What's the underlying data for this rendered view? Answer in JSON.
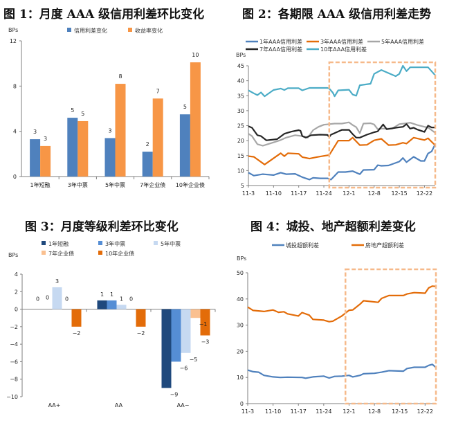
{
  "colors": {
    "blue": "#4F81BD",
    "orange": "#F79646",
    "navy": "#1F497D",
    "midblue": "#558ED5",
    "lightblue": "#C6D9F1",
    "peach": "#FAC090",
    "deeporange": "#E36C09",
    "teal": "#4BACC6",
    "gray": "#A6A6A6",
    "black": "#262626",
    "box": "#F6B98A"
  },
  "chart_data": [
    {
      "id": "fig1",
      "type": "bar",
      "title": "图 1：月度 AAA 级信用利差环比变化",
      "ylabel": "BPs",
      "ylim": [
        0,
        12
      ],
      "yticks": [
        0,
        4,
        8,
        12
      ],
      "categories": [
        "1年短融",
        "3年中票",
        "5年中票",
        "7年企业债",
        "10年企业债"
      ],
      "series": [
        {
          "name": "信用利差变化",
          "color": "#4F81BD",
          "values": [
            3.3,
            5.2,
            3.4,
            2.2,
            5.5
          ],
          "labels": [
            "3",
            "5",
            "3",
            "2",
            "5"
          ]
        },
        {
          "name": "收益率变化",
          "color": "#F79646",
          "values": [
            2.7,
            4.9,
            8.2,
            6.9,
            10.1
          ],
          "labels": [
            "3",
            "5",
            "8",
            "7",
            "10"
          ]
        }
      ],
      "legend": "top"
    },
    {
      "id": "fig2",
      "type": "line",
      "title": "图 2：各期限 AAA 级信用利差走势",
      "ylabel": "BPs",
      "ylim": [
        5,
        45
      ],
      "yticks": [
        5,
        10,
        15,
        20,
        25,
        30,
        35,
        40,
        45
      ],
      "xticks": [
        "11-3",
        "11-10",
        "11-17",
        "11-24",
        "12-1",
        "12-8",
        "12-15",
        "12-22"
      ],
      "x_days": [
        0,
        7,
        14,
        21,
        28,
        35,
        42,
        49
      ],
      "x_range": [
        0,
        52
      ],
      "highlight_range_days": [
        22.5,
        52
      ],
      "series": [
        {
          "name": "1年AAA信用利差",
          "color": "#4F81BD",
          "points": [
            [
              0,
              9.3
            ],
            [
              1.5,
              8.3
            ],
            [
              4,
              8.8
            ],
            [
              7,
              8.5
            ],
            [
              9,
              9.3
            ],
            [
              10.5,
              8.8
            ],
            [
              13,
              8.9
            ],
            [
              15,
              7.8
            ],
            [
              17,
              7.0
            ],
            [
              18,
              7.6
            ],
            [
              20,
              7.4
            ],
            [
              22,
              7.4
            ],
            [
              23,
              7.0
            ],
            [
              25,
              9.5
            ],
            [
              27,
              9.5
            ],
            [
              29,
              9.8
            ],
            [
              31,
              8.8
            ],
            [
              32,
              10.2
            ],
            [
              35,
              10.3
            ],
            [
              36,
              11.8
            ],
            [
              37,
              11.6
            ],
            [
              39,
              11.7
            ],
            [
              42,
              13.0
            ],
            [
              43,
              14.2
            ],
            [
              44,
              12.8
            ],
            [
              46,
              14.6
            ],
            [
              48,
              13.2
            ],
            [
              49,
              13.2
            ],
            [
              50,
              15.7
            ],
            [
              51,
              16.4
            ],
            [
              52,
              18.8
            ]
          ]
        },
        {
          "name": "3年AAA信用利差",
          "color": "#E36C09",
          "points": [
            [
              0,
              14.8
            ],
            [
              1.5,
              14.6
            ],
            [
              4.5,
              12.0
            ],
            [
              9,
              15.8
            ],
            [
              10,
              14.8
            ],
            [
              11,
              15.8
            ],
            [
              14,
              15.6
            ],
            [
              15,
              14.5
            ],
            [
              17,
              14.0
            ],
            [
              19,
              14.5
            ],
            [
              21,
              14.9
            ],
            [
              22.5,
              15.2
            ],
            [
              25,
              20.0
            ],
            [
              28,
              20.0
            ],
            [
              29,
              21.0
            ],
            [
              31,
              18.5
            ],
            [
              33,
              18.6
            ],
            [
              35,
              20.1
            ],
            [
              37,
              20.6
            ],
            [
              39,
              18.5
            ],
            [
              41,
              18.6
            ],
            [
              43,
              19.3
            ],
            [
              44,
              19.0
            ],
            [
              46,
              21.0
            ],
            [
              49,
              20.2
            ],
            [
              50,
              20.8
            ],
            [
              51.5,
              19.0
            ],
            [
              52,
              18.5
            ]
          ]
        },
        {
          "name": "5年AAA信用利差",
          "color": "#A6A6A6",
          "points": [
            [
              0,
              22.3
            ],
            [
              1,
              21.5
            ],
            [
              2.5,
              18.8
            ],
            [
              4,
              18.3
            ],
            [
              7,
              19.4
            ],
            [
              9,
              20.2
            ],
            [
              10.5,
              21.0
            ],
            [
              13,
              21.8
            ],
            [
              15,
              21.5
            ],
            [
              16.5,
              21.0
            ],
            [
              18,
              23.5
            ],
            [
              19.5,
              24.6
            ],
            [
              21,
              25.3
            ],
            [
              22.5,
              25.5
            ],
            [
              24,
              25.7
            ],
            [
              26,
              25.7
            ],
            [
              28,
              26.1
            ],
            [
              29,
              25.2
            ],
            [
              30,
              24.5
            ],
            [
              31,
              22.5
            ],
            [
              32,
              25.7
            ],
            [
              34,
              25.8
            ],
            [
              35,
              25.4
            ],
            [
              36,
              23.8
            ],
            [
              37,
              24.0
            ],
            [
              40,
              24.0
            ],
            [
              42,
              25.5
            ],
            [
              44,
              25.8
            ],
            [
              45,
              26.0
            ],
            [
              47,
              25.2
            ],
            [
              49,
              24.6
            ],
            [
              50,
              24.4
            ],
            [
              51,
              23.5
            ],
            [
              52,
              22.6
            ]
          ]
        },
        {
          "name": "7年AAA信用利差",
          "color": "#262626",
          "points": [
            [
              0,
              24.8
            ],
            [
              1,
              24.3
            ],
            [
              2.5,
              21.8
            ],
            [
              3.5,
              21.5
            ],
            [
              5,
              20.1
            ],
            [
              8,
              20.5
            ],
            [
              10,
              22.3
            ],
            [
              12,
              23.0
            ],
            [
              14,
              23.5
            ],
            [
              14.5,
              23.3
            ],
            [
              15,
              21.5
            ],
            [
              16,
              21.0
            ],
            [
              17.5,
              21.8
            ],
            [
              20,
              22.0
            ],
            [
              22,
              21.9
            ],
            [
              22.5,
              21.2
            ],
            [
              23,
              22.0
            ],
            [
              24,
              22.5
            ],
            [
              26,
              23.6
            ],
            [
              28,
              23.6
            ],
            [
              29,
              22.2
            ],
            [
              30,
              21.0
            ],
            [
              31,
              21.0
            ],
            [
              33,
              22.0
            ],
            [
              35,
              22.8
            ],
            [
              36,
              23.1
            ],
            [
              37.5,
              25.4
            ],
            [
              38.5,
              23.8
            ],
            [
              41,
              24.3
            ],
            [
              43,
              24.6
            ],
            [
              44,
              25.5
            ],
            [
              45,
              24.0
            ],
            [
              46,
              24.3
            ],
            [
              47,
              23.7
            ],
            [
              49,
              22.9
            ],
            [
              50,
              25.0
            ],
            [
              51,
              24.4
            ],
            [
              52,
              24.4
            ]
          ]
        },
        {
          "name": "10年AAA信用利差",
          "color": "#4BACC6",
          "points": [
            [
              0,
              36.8
            ],
            [
              1.5,
              35.8
            ],
            [
              2.5,
              35.2
            ],
            [
              3.5,
              36.1
            ],
            [
              4.5,
              34.8
            ],
            [
              7,
              36.9
            ],
            [
              9,
              37.4
            ],
            [
              10,
              36.9
            ],
            [
              11,
              37.5
            ],
            [
              14,
              37.5
            ],
            [
              15,
              36.8
            ],
            [
              17,
              37.6
            ],
            [
              22,
              37.6
            ],
            [
              22.5,
              37.4
            ],
            [
              23.5,
              36.0
            ],
            [
              24,
              34.8
            ],
            [
              25,
              36.8
            ],
            [
              28,
              37.0
            ],
            [
              29,
              35.4
            ],
            [
              29.5,
              35.2
            ],
            [
              30,
              35.0
            ],
            [
              31,
              38.5
            ],
            [
              34,
              39.0
            ],
            [
              35,
              42.3
            ],
            [
              37,
              43.6
            ],
            [
              41,
              41.5
            ],
            [
              42,
              42.3
            ],
            [
              43,
              45.0
            ],
            [
              44,
              43.2
            ],
            [
              45,
              44.5
            ],
            [
              50,
              44.5
            ],
            [
              52,
              41.8
            ]
          ]
        }
      ],
      "legend": "top"
    },
    {
      "id": "fig3",
      "type": "bar",
      "title": "图 3：月度等级利差环比变化",
      "ylabel": "BPs",
      "ylim": [
        -10,
        4
      ],
      "yticks": [
        4,
        2,
        0,
        -2,
        -4,
        -6,
        -8,
        -10
      ],
      "categories": [
        "AA+",
        "AA",
        "AA−"
      ],
      "series": [
        {
          "name": "1年短融",
          "color": "#1F497D",
          "values": [
            0,
            1,
            -9
          ],
          "labels": [
            "0",
            "1",
            "−9"
          ]
        },
        {
          "name": "3年中票",
          "color": "#558ED5",
          "values": [
            0,
            1,
            -6
          ],
          "labels": [
            "0",
            "1",
            "−6"
          ]
        },
        {
          "name": "5年中票",
          "color": "#C6D9F1",
          "values": [
            2.5,
            0.5,
            -5
          ],
          "labels": [
            "3",
            "1",
            "−5"
          ]
        },
        {
          "name": "7年企业债",
          "color": "#FAC090",
          "values": [
            0,
            0,
            -1
          ],
          "labels": [
            "0",
            "0",
            "−1"
          ]
        },
        {
          "name": "10年企业债",
          "color": "#E36C09",
          "values": [
            -2,
            -2,
            -3
          ],
          "labels": [
            "−2",
            "−2",
            "−3"
          ]
        }
      ],
      "legend": "top"
    },
    {
      "id": "fig4",
      "type": "line",
      "title": "图 4：城投、地产超额利差变化",
      "ylabel": "BPs",
      "ylim": [
        0,
        50
      ],
      "yticks": [
        0,
        10,
        20,
        30,
        40,
        50
      ],
      "xticks": [
        "11-3",
        "11-10",
        "11-17",
        "11-24",
        "12-1",
        "12-8",
        "12-15",
        "12-22"
      ],
      "x_days": [
        0,
        7,
        14,
        21,
        28,
        35,
        42,
        49
      ],
      "x_range": [
        0,
        52
      ],
      "highlight_range_days": [
        27,
        52
      ],
      "series": [
        {
          "name": "城投超额利差",
          "color": "#4F81BD",
          "points": [
            [
              0,
              12.8
            ],
            [
              1.5,
              12.2
            ],
            [
              3,
              12.0
            ],
            [
              4.5,
              10.8
            ],
            [
              7,
              10.2
            ],
            [
              9,
              10.0
            ],
            [
              11,
              10.1
            ],
            [
              15,
              10.0
            ],
            [
              16,
              9.7
            ],
            [
              18,
              10.2
            ],
            [
              21,
              10.5
            ],
            [
              22.5,
              9.8
            ],
            [
              24,
              10.4
            ],
            [
              26,
              10.5
            ],
            [
              28,
              10.8
            ],
            [
              29,
              10.2
            ],
            [
              31,
              10.8
            ],
            [
              32,
              11.4
            ],
            [
              35,
              11.6
            ],
            [
              37,
              12.0
            ],
            [
              39,
              12.6
            ],
            [
              43,
              12.4
            ],
            [
              44,
              13.4
            ],
            [
              46,
              13.9
            ],
            [
              49,
              13.9
            ],
            [
              50,
              14.6
            ],
            [
              51,
              15.0
            ],
            [
              52,
              13.8
            ]
          ]
        },
        {
          "name": "房地产超额利差",
          "color": "#E36C09",
          "points": [
            [
              0,
              36.9
            ],
            [
              1.5,
              35.6
            ],
            [
              4.5,
              35.2
            ],
            [
              7,
              35.8
            ],
            [
              8.5,
              34.9
            ],
            [
              10,
              35.1
            ],
            [
              11,
              34.3
            ],
            [
              14,
              33.5
            ],
            [
              15,
              34.8
            ],
            [
              17,
              33.8
            ],
            [
              18,
              32.2
            ],
            [
              21,
              31.9
            ],
            [
              22.5,
              31.3
            ],
            [
              23.5,
              31.5
            ],
            [
              26,
              33.5
            ],
            [
              28,
              35.7
            ],
            [
              29,
              35.8
            ],
            [
              31,
              38.0
            ],
            [
              32,
              39.3
            ],
            [
              36,
              38.7
            ],
            [
              37,
              40.2
            ],
            [
              39,
              41.3
            ],
            [
              43,
              41.3
            ],
            [
              44,
              41.9
            ],
            [
              46,
              42.4
            ],
            [
              49,
              42.2
            ],
            [
              50,
              44.2
            ],
            [
              51,
              44.9
            ],
            [
              52,
              44.8
            ]
          ]
        }
      ],
      "legend": "top"
    }
  ]
}
